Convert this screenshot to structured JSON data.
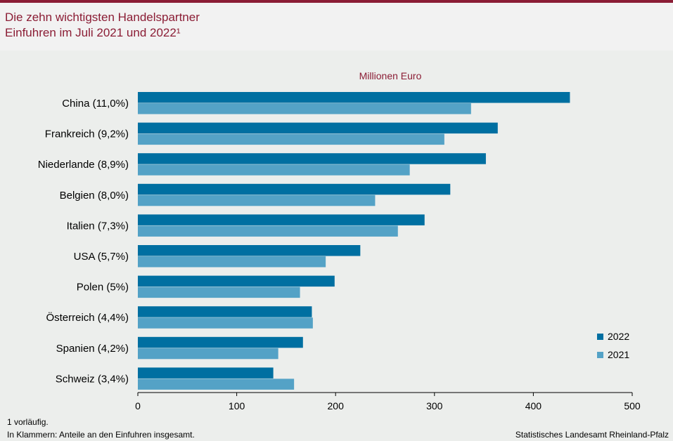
{
  "header": {
    "title_line1": "Die zehn wichtigsten Handelspartner",
    "title_line2": "Einfuhren im Juli 2021 und 2022¹"
  },
  "colors": {
    "accent": "#8b1d35",
    "series_2022": "#006fa1",
    "series_2021": "#54a2c6"
  },
  "footer": {
    "note1": "1 vorläufig.",
    "note2": "In Klammern: Anteile an den Einfuhren insgesamt.",
    "source": "Statistisches Landesamt Rheinland-Pfalz"
  },
  "chart_data": {
    "type": "bar",
    "orientation": "horizontal",
    "unit_label": "Millionen Euro",
    "categories": [
      "China (11,0%)",
      "Frankreich (9,2%)",
      "Niederlande (8,9%)",
      "Belgien (8,0%)",
      "Italien (7,3%)",
      "USA (5,7%)",
      "Polen (5%)",
      "Österreich (4,4%)",
      "Spanien (4,2%)",
      "Schweiz (3,4%)"
    ],
    "series": [
      {
        "name": "2022",
        "values": [
          437,
          364,
          352,
          316,
          290,
          225,
          199,
          176,
          167,
          137
        ]
      },
      {
        "name": "2021",
        "values": [
          337,
          310,
          275,
          240,
          263,
          190,
          164,
          177,
          142,
          158
        ]
      }
    ],
    "xlim": [
      0,
      500
    ],
    "xticks": [
      "0",
      "100",
      "200",
      "300",
      "400",
      "500"
    ],
    "grid": false,
    "legend_position": "bottom-right"
  }
}
